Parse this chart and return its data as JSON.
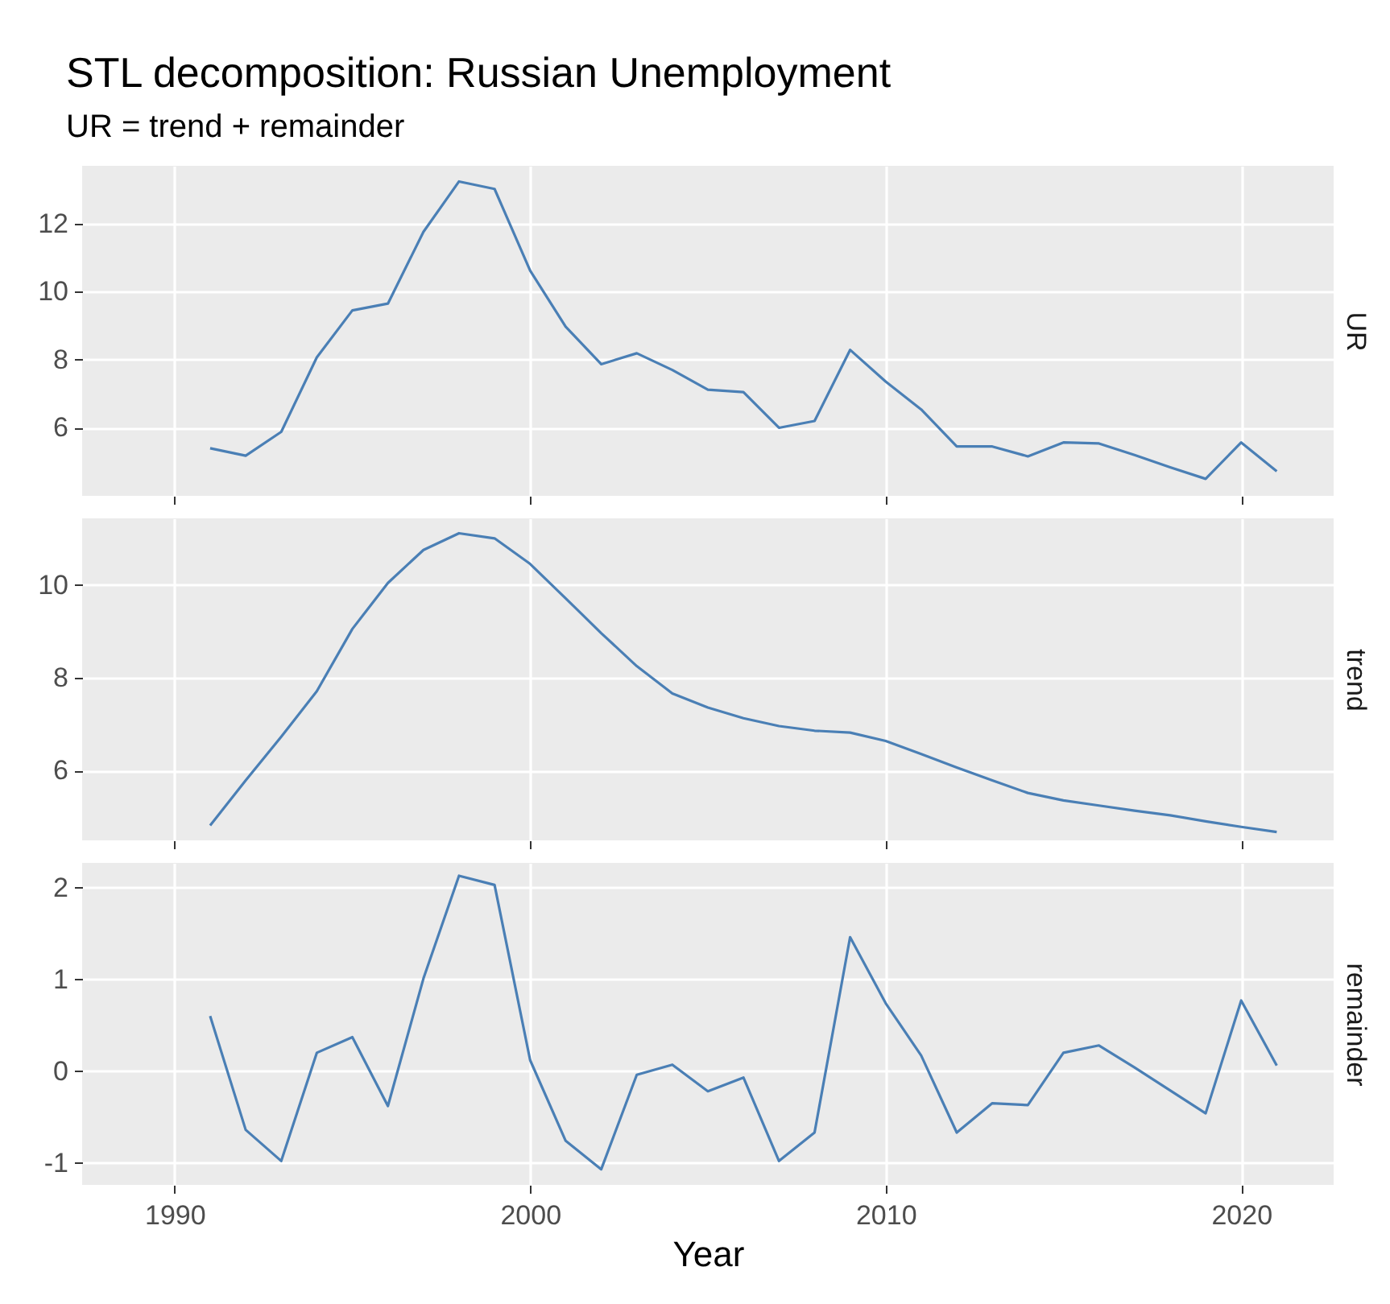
{
  "chart_data": [
    {
      "type": "line",
      "title": "STL decomposition: Russian Unemployment",
      "subtitle": "UR = trend + remainder",
      "y2label": "UR",
      "color": "#4a7fb5",
      "x": [
        1991,
        1992,
        1993,
        1994,
        1995,
        1996,
        1997,
        1998,
        1999,
        2000,
        2001,
        2002,
        2003,
        2004,
        2005,
        2006,
        2007,
        2008,
        2009,
        2010,
        2011,
        2012,
        2013,
        2014,
        2015,
        2016,
        2017,
        2018,
        2019,
        2020,
        2021
      ],
      "values": [
        5.4,
        5.18,
        5.88,
        8.07,
        9.45,
        9.65,
        11.76,
        13.24,
        13.02,
        10.62,
        8.97,
        7.87,
        8.19,
        7.7,
        7.12,
        7.05,
        6.0,
        6.2,
        8.29,
        7.36,
        6.54,
        5.45,
        5.45,
        5.16,
        5.57,
        5.54,
        5.2,
        4.84,
        4.5,
        5.57,
        4.72
      ],
      "xlim": [
        1987.4,
        2022.6
      ],
      "xticks": [
        1990,
        2000,
        2010,
        2020
      ],
      "ylim": [
        4.0,
        13.7
      ],
      "yticks": [
        6,
        8,
        10,
        12
      ],
      "grid": true,
      "tick_labels": "y"
    },
    {
      "type": "line",
      "y2label": "trend",
      "color": "#4a7fb5",
      "x": [
        1991,
        1992,
        1993,
        1994,
        1995,
        1996,
        1997,
        1998,
        1999,
        2000,
        2001,
        2002,
        2003,
        2004,
        2005,
        2006,
        2007,
        2008,
        2009,
        2010,
        2011,
        2012,
        2013,
        2014,
        2015,
        2016,
        2017,
        2018,
        2019,
        2020,
        2021
      ],
      "values": [
        4.82,
        5.79,
        6.73,
        7.71,
        9.05,
        10.04,
        10.75,
        11.11,
        11.0,
        10.45,
        9.71,
        8.96,
        8.25,
        7.66,
        7.36,
        7.13,
        6.96,
        6.86,
        6.82,
        6.64,
        6.36,
        6.07,
        5.79,
        5.52,
        5.36,
        5.25,
        5.14,
        5.04,
        4.91,
        4.79,
        4.68
      ],
      "xlim": [
        1987.4,
        2022.6
      ],
      "xticks": [
        1990,
        2000,
        2010,
        2020
      ],
      "ylim": [
        4.5,
        11.43
      ],
      "yticks": [
        6,
        8,
        10
      ],
      "grid": true,
      "tick_labels": "y"
    },
    {
      "type": "line",
      "xlabel": "Year",
      "y2label": "remainder",
      "color": "#4a7fb5",
      "x": [
        1991,
        1992,
        1993,
        1994,
        1995,
        1996,
        1997,
        1998,
        1999,
        2000,
        2001,
        2002,
        2003,
        2004,
        2005,
        2006,
        2007,
        2008,
        2009,
        2010,
        2011,
        2012,
        2013,
        2014,
        2015,
        2016,
        2017,
        2018,
        2019,
        2020,
        2021
      ],
      "values": [
        0.6,
        -0.64,
        -0.98,
        0.2,
        0.37,
        -0.38,
        1.01,
        2.13,
        2.03,
        0.12,
        -0.76,
        -1.07,
        -0.04,
        0.07,
        -0.22,
        -0.07,
        -0.98,
        -0.67,
        1.46,
        0.74,
        0.17,
        -0.67,
        -0.35,
        -0.37,
        0.2,
        0.28,
        0.04,
        -0.21,
        -0.46,
        0.77,
        0.06
      ],
      "xlim": [
        1987.4,
        2022.6
      ],
      "xticks": [
        1990,
        2000,
        2010,
        2020
      ],
      "ylim": [
        -1.24,
        2.27
      ],
      "yticks": [
        -1,
        0,
        1,
        2
      ],
      "grid": true
    }
  ]
}
